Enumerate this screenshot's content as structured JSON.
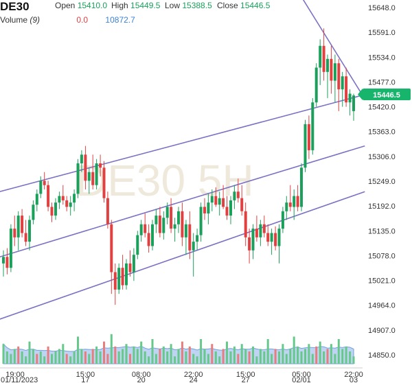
{
  "header": {
    "symbol": "DE30",
    "open_label": "Open",
    "open_value": "15410.0",
    "high_label": "High",
    "high_value": "15449.5",
    "low_label": "Low",
    "low_value": "15388.5",
    "close_label": "Close",
    "close_value": "15446.5",
    "volume_label": "Volume",
    "volume_period": "(9)",
    "volume_value": "0.0",
    "volume_ma_value": "10872.7"
  },
  "watermark": "DE30 5H",
  "last_price_tag": "15446.5",
  "colors": {
    "up": "#1aa05a",
    "down": "#e04040",
    "channel": "#7b72c4",
    "vol_up": "#66c98a",
    "vol_down": "#e87d7d",
    "vol_area": "#a9c6ee",
    "price_tag": "#17b56b"
  },
  "chart_data": {
    "type": "candlestick",
    "y_ticks": [
      "15648.0",
      "15591.0",
      "15534.0",
      "15477.0",
      "15420.0",
      "15363.0",
      "15306.0",
      "15249.0",
      "15192.0",
      "15135.0",
      "15078.0",
      "15021.0",
      "14964.0",
      "14907.0",
      "14850.0"
    ],
    "y_range": [
      14830,
      15660
    ],
    "x_ticks": [
      {
        "time": "19:00",
        "date": "01/11/2023",
        "index": 0
      },
      {
        "time": "15:00",
        "date": "17",
        "index": 22
      },
      {
        "time": "08:00",
        "date": "20",
        "index": 37
      },
      {
        "time": "22:00",
        "date": "24",
        "index": 51
      },
      {
        "time": "15:00",
        "date": "27",
        "index": 65
      },
      {
        "time": "05:00",
        "date": "02/01",
        "index": 80
      },
      {
        "time": "22:00",
        "date": "03",
        "index": 94
      }
    ],
    "candles": [
      [
        15060,
        15090,
        15030,
        15075
      ],
      [
        15075,
        15095,
        15035,
        15050
      ],
      [
        15050,
        15150,
        15040,
        15140
      ],
      [
        15140,
        15170,
        15100,
        15120
      ],
      [
        15120,
        15180,
        15090,
        15170
      ],
      [
        15170,
        15185,
        15120,
        15130
      ],
      [
        15130,
        15160,
        15100,
        15110
      ],
      [
        15110,
        15170,
        15090,
        15160
      ],
      [
        15160,
        15205,
        15150,
        15195
      ],
      [
        15195,
        15230,
        15180,
        15220
      ],
      [
        15220,
        15260,
        15210,
        15250
      ],
      [
        15250,
        15270,
        15230,
        15240
      ],
      [
        15240,
        15250,
        15180,
        15190
      ],
      [
        15190,
        15200,
        15155,
        15170
      ],
      [
        15170,
        15210,
        15160,
        15200
      ],
      [
        15200,
        15225,
        15185,
        15215
      ],
      [
        15215,
        15240,
        15195,
        15205
      ],
      [
        15205,
        15215,
        15180,
        15190
      ],
      [
        15190,
        15215,
        15170,
        15200
      ],
      [
        15200,
        15230,
        15180,
        15220
      ],
      [
        15220,
        15300,
        15210,
        15290
      ],
      [
        15290,
        15320,
        15270,
        15310
      ],
      [
        15310,
        15330,
        15230,
        15250
      ],
      [
        15250,
        15280,
        15220,
        15270
      ],
      [
        15270,
        15310,
        15230,
        15240
      ],
      [
        15240,
        15300,
        15230,
        15290
      ],
      [
        15290,
        15310,
        15260,
        15280
      ],
      [
        15280,
        15295,
        15200,
        15210
      ],
      [
        15210,
        15225,
        15140,
        15150
      ],
      [
        15150,
        15160,
        14990,
        15040
      ],
      [
        15040,
        15060,
        14965,
        15000
      ],
      [
        15000,
        15060,
        14990,
        15050
      ],
      [
        15050,
        15080,
        15000,
        15010
      ],
      [
        15010,
        15070,
        15000,
        15060
      ],
      [
        15060,
        15090,
        15030,
        15040
      ],
      [
        15040,
        15095,
        15020,
        15080
      ],
      [
        15080,
        15135,
        15070,
        15125
      ],
      [
        15125,
        15160,
        15110,
        15150
      ],
      [
        15150,
        15175,
        15120,
        15130
      ],
      [
        15130,
        15150,
        15085,
        15100
      ],
      [
        15100,
        15160,
        15090,
        15150
      ],
      [
        15150,
        15185,
        15130,
        15170
      ],
      [
        15170,
        15190,
        15120,
        15130
      ],
      [
        15130,
        15180,
        15115,
        15165
      ],
      [
        15165,
        15200,
        15150,
        15190
      ],
      [
        15190,
        15210,
        15130,
        15140
      ],
      [
        15140,
        15165,
        15110,
        15150
      ],
      [
        15150,
        15190,
        15130,
        15180
      ],
      [
        15180,
        15200,
        15100,
        15120
      ],
      [
        15120,
        15160,
        15080,
        15150
      ],
      [
        15150,
        15180,
        15070,
        15090
      ],
      [
        15090,
        15130,
        15030,
        15110
      ],
      [
        15110,
        15140,
        15090,
        15125
      ],
      [
        15125,
        15200,
        15110,
        15190
      ],
      [
        15190,
        15210,
        15160,
        15175
      ],
      [
        15175,
        15220,
        15150,
        15200
      ],
      [
        15200,
        15230,
        15180,
        15215
      ],
      [
        15215,
        15235,
        15190,
        15195
      ],
      [
        15195,
        15225,
        15170,
        15210
      ],
      [
        15210,
        15240,
        15185,
        15190
      ],
      [
        15190,
        15215,
        15160,
        15170
      ],
      [
        15170,
        15215,
        15150,
        15205
      ],
      [
        15205,
        15240,
        15185,
        15225
      ],
      [
        15225,
        15255,
        15200,
        15210
      ],
      [
        15210,
        15240,
        15170,
        15180
      ],
      [
        15180,
        15200,
        15100,
        15120
      ],
      [
        15120,
        15140,
        15060,
        15090
      ],
      [
        15090,
        15150,
        15070,
        15140
      ],
      [
        15140,
        15170,
        15110,
        15120
      ],
      [
        15120,
        15160,
        15100,
        15150
      ],
      [
        15150,
        15170,
        15120,
        15130
      ],
      [
        15130,
        15150,
        15100,
        15110
      ],
      [
        15110,
        15140,
        15080,
        15130
      ],
      [
        15130,
        15145,
        15090,
        15100
      ],
      [
        15100,
        15150,
        15060,
        15140
      ],
      [
        15140,
        15190,
        15130,
        15180
      ],
      [
        15180,
        15215,
        15160,
        15200
      ],
      [
        15200,
        15240,
        15180,
        15190
      ],
      [
        15190,
        15230,
        15160,
        15215
      ],
      [
        15215,
        15240,
        15180,
        15190
      ],
      [
        15190,
        15290,
        15180,
        15280
      ],
      [
        15280,
        15390,
        15270,
        15380
      ],
      [
        15380,
        15400,
        15300,
        15320
      ],
      [
        15320,
        15440,
        15310,
        15430
      ],
      [
        15430,
        15520,
        15420,
        15510
      ],
      [
        15510,
        15575,
        15470,
        15560
      ],
      [
        15560,
        15600,
        15480,
        15500
      ],
      [
        15500,
        15540,
        15440,
        15530
      ],
      [
        15530,
        15560,
        15450,
        15480
      ],
      [
        15480,
        15540,
        15430,
        15520
      ],
      [
        15520,
        15530,
        15410,
        15460
      ],
      [
        15460,
        15500,
        15420,
        15490
      ],
      [
        15490,
        15510,
        15420,
        15430
      ],
      [
        15430,
        15460,
        15400,
        15450
      ],
      [
        15410,
        15450,
        15388,
        15446
      ]
    ],
    "volume": [
      [
        8,
        1
      ],
      [
        5,
        1
      ],
      [
        4,
        1
      ],
      [
        6,
        1
      ],
      [
        7,
        0
      ],
      [
        5,
        1
      ],
      [
        3,
        1
      ],
      [
        9,
        1
      ],
      [
        6,
        1
      ],
      [
        4,
        0
      ],
      [
        5,
        1
      ],
      [
        3,
        1
      ],
      [
        7,
        0
      ],
      [
        4,
        1
      ],
      [
        5,
        1
      ],
      [
        6,
        1
      ],
      [
        8,
        1
      ],
      [
        4,
        0
      ],
      [
        3,
        1
      ],
      [
        5,
        1
      ],
      [
        11,
        1
      ],
      [
        6,
        1
      ],
      [
        5,
        0
      ],
      [
        4,
        1
      ],
      [
        6,
        0
      ],
      [
        7,
        1
      ],
      [
        5,
        1
      ],
      [
        9,
        0
      ],
      [
        4,
        0
      ],
      [
        12,
        1
      ],
      [
        7,
        0
      ],
      [
        5,
        1
      ],
      [
        6,
        1
      ],
      [
        8,
        1
      ],
      [
        4,
        0
      ],
      [
        7,
        1
      ],
      [
        6,
        1
      ],
      [
        9,
        1
      ],
      [
        5,
        1
      ],
      [
        3,
        1
      ],
      [
        10,
        1
      ],
      [
        4,
        1
      ],
      [
        6,
        0
      ],
      [
        7,
        1
      ],
      [
        5,
        1
      ],
      [
        8,
        1
      ],
      [
        3,
        1
      ],
      [
        6,
        1
      ],
      [
        9,
        0
      ],
      [
        5,
        1
      ],
      [
        7,
        0
      ],
      [
        4,
        1
      ],
      [
        3,
        1
      ],
      [
        10,
        1
      ],
      [
        6,
        1
      ],
      [
        4,
        1
      ],
      [
        8,
        0
      ],
      [
        5,
        1
      ],
      [
        3,
        1
      ],
      [
        6,
        0
      ],
      [
        9,
        1
      ],
      [
        5,
        1
      ],
      [
        7,
        1
      ],
      [
        4,
        0
      ],
      [
        8,
        1
      ],
      [
        6,
        1
      ],
      [
        5,
        0
      ],
      [
        7,
        1
      ],
      [
        3,
        1
      ],
      [
        6,
        1
      ],
      [
        5,
        1
      ],
      [
        10,
        1
      ],
      [
        4,
        1
      ],
      [
        6,
        0
      ],
      [
        5,
        1
      ],
      [
        8,
        1
      ],
      [
        4,
        1
      ],
      [
        6,
        1
      ],
      [
        11,
        1
      ],
      [
        7,
        1
      ],
      [
        5,
        1
      ],
      [
        6,
        1
      ],
      [
        8,
        1
      ],
      [
        4,
        1
      ],
      [
        7,
        0
      ],
      [
        9,
        1
      ],
      [
        5,
        1
      ],
      [
        6,
        0
      ],
      [
        8,
        1
      ],
      [
        4,
        1
      ],
      [
        10,
        1
      ],
      [
        6,
        1
      ],
      [
        7,
        1
      ],
      [
        5,
        1
      ],
      [
        3,
        1
      ]
    ]
  }
}
